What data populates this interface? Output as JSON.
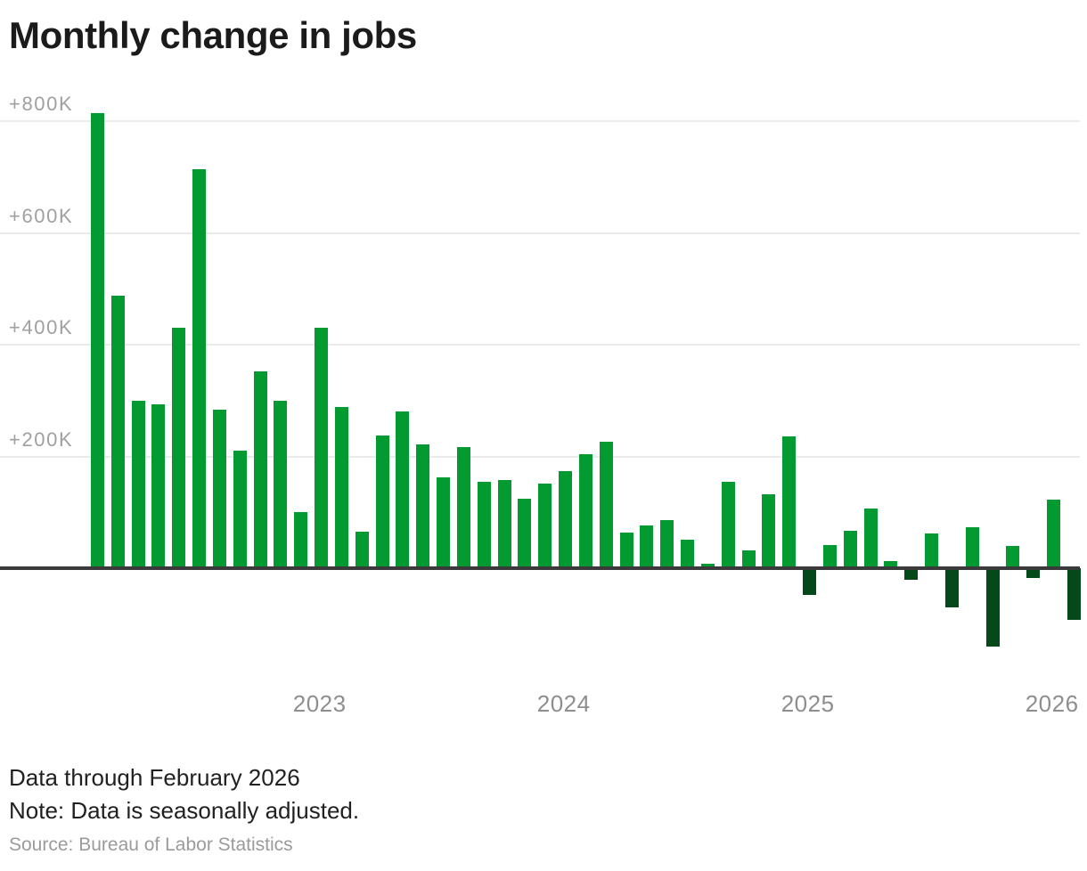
{
  "title": "Monthly change in jobs",
  "footer": {
    "line1": "Data through February 2026",
    "line2": "Note: Data is seasonally adjusted.",
    "source": "Source: Bureau of Labor Statistics"
  },
  "chart_data": {
    "type": "bar",
    "title": "Monthly change in jobs",
    "unit": "thousands of jobs (K)",
    "grid": true,
    "ylim": [
      -160,
      840
    ],
    "y_ticks": [
      {
        "label": "+800K",
        "value": 800
      },
      {
        "label": "+600K",
        "value": 600
      },
      {
        "label": "+400K",
        "value": 400
      },
      {
        "label": "+200K",
        "value": 200
      }
    ],
    "x": [
      "Feb 2022",
      "Mar 2022",
      "Apr 2022",
      "May 2022",
      "Jun 2022",
      "Jul 2022",
      "Aug 2022",
      "Sep 2022",
      "Oct 2022",
      "Nov 2022",
      "Dec 2022",
      "Jan 2023",
      "Feb 2023",
      "Mar 2023",
      "Apr 2023",
      "May 2023",
      "Jun 2023",
      "Jul 2023",
      "Aug 2023",
      "Sep 2023",
      "Oct 2023",
      "Nov 2023",
      "Dec 2023",
      "Jan 2024",
      "Feb 2024",
      "Mar 2024",
      "Apr 2024",
      "May 2024",
      "Jun 2024",
      "Jul 2024",
      "Aug 2024",
      "Sep 2024",
      "Oct 2024",
      "Nov 2024",
      "Dec 2024",
      "Jan 2025",
      "Feb 2025",
      "Mar 2025",
      "Apr 2025",
      "May 2025",
      "Jun 2025",
      "Jul 2025",
      "Aug 2025",
      "Sep 2025",
      "Oct 2025",
      "Nov 2025",
      "Dec 2025",
      "Jan 2026",
      "Feb 2026"
    ],
    "values": [
      815,
      487,
      300,
      294,
      430,
      714,
      284,
      210,
      352,
      300,
      100,
      430,
      288,
      65,
      238,
      280,
      222,
      162,
      217,
      154,
      157,
      125,
      152,
      173,
      204,
      226,
      63,
      76,
      86,
      51,
      8,
      154,
      32,
      132,
      236,
      -48,
      41,
      67,
      106,
      12,
      -20,
      62,
      -70,
      74,
      -140,
      40,
      -18,
      123,
      -92
    ],
    "x_year_labels": [
      {
        "label": "2023",
        "month_index": 11
      },
      {
        "label": "2024",
        "month_index": 23
      },
      {
        "label": "2025",
        "month_index": 35
      },
      {
        "label": "2026",
        "month_index": 47
      }
    ],
    "legend_position": "none",
    "positive_color": "#039a31",
    "negative_color": "#05491b",
    "axis_color": "#3a3a3a",
    "gridline_color": "#ebebeb",
    "tick_label_color": "#a0a0a0",
    "year_label_color": "#8e8e8e"
  }
}
